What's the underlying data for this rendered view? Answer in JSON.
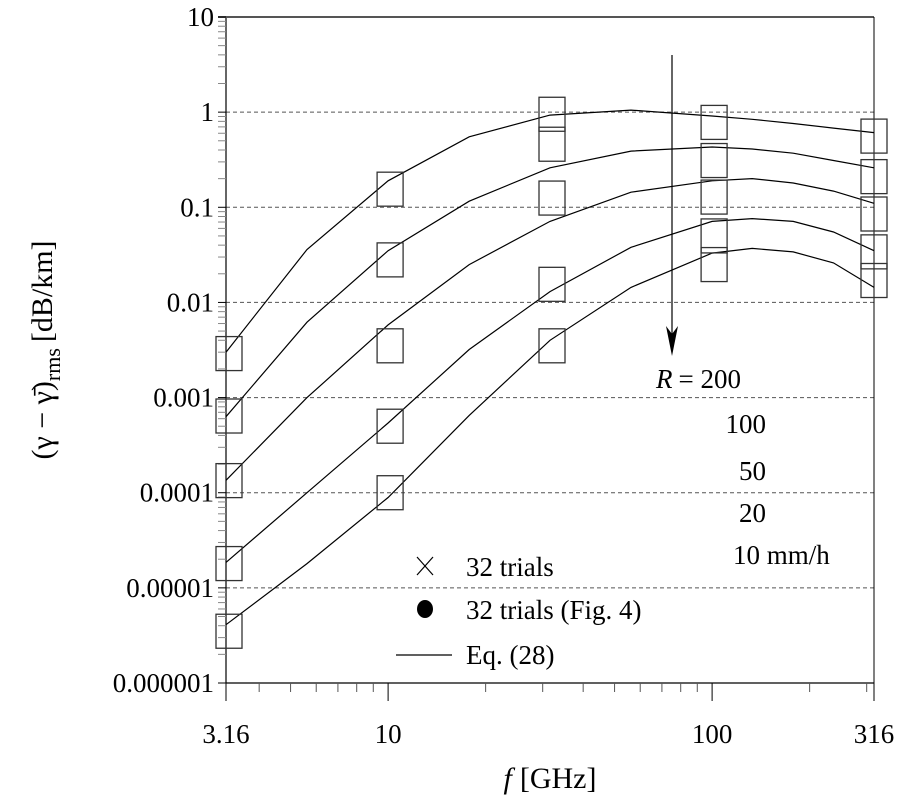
{
  "chart_data": {
    "type": "line",
    "xlabel_italic": "f",
    "xlabel": "[GHz]",
    "ylabel_main": "(γ − γ̄)",
    "ylabel_sub": "rms",
    "ylabel_unit": "[dB/km]",
    "x_scale": "log",
    "y_scale": "log",
    "xlim": [
      3.16,
      316
    ],
    "ylim": [
      1e-06,
      10
    ],
    "x_ticks": [
      {
        "v": 3.16,
        "label": "3.16"
      },
      {
        "v": 10,
        "label": "10"
      },
      {
        "v": 100,
        "label": "100"
      },
      {
        "v": 316,
        "label": "316"
      }
    ],
    "y_ticks": [
      {
        "v": 10,
        "label": "10"
      },
      {
        "v": 1,
        "label": "1"
      },
      {
        "v": 0.1,
        "label": "0.1"
      },
      {
        "v": 0.01,
        "label": "0.01"
      },
      {
        "v": 0.001,
        "label": "0.001"
      },
      {
        "v": 0.0001,
        "label": "0.0001"
      },
      {
        "v": 1e-05,
        "label": "0.00001"
      },
      {
        "v": 1e-06,
        "label": "0.000001"
      }
    ],
    "grid": "horizontal dashed at decades",
    "x": [
      3.16,
      5.62,
      10,
      17.8,
      31.6,
      56.2,
      100,
      133,
      178,
      237,
      316
    ],
    "series": [
      {
        "label": "200",
        "values": [
          0.003,
          0.036,
          0.19,
          0.55,
          0.93,
          1.05,
          0.91,
          0.84,
          0.76,
          0.68,
          0.61
        ]
      },
      {
        "label": "100",
        "values": [
          0.00063,
          0.0062,
          0.035,
          0.116,
          0.26,
          0.39,
          0.43,
          0.41,
          0.37,
          0.31,
          0.26
        ]
      },
      {
        "label": "50",
        "values": [
          0.000135,
          0.001,
          0.0058,
          0.025,
          0.071,
          0.144,
          0.19,
          0.2,
          0.18,
          0.148,
          0.11
        ]
      },
      {
        "label": "20",
        "values": [
          1.85e-05,
          0.0001,
          0.00054,
          0.0032,
          0.013,
          0.038,
          0.071,
          0.076,
          0.071,
          0.055,
          0.035
        ]
      },
      {
        "label": "10 mm/h",
        "values": [
          4.1e-06,
          1.8e-05,
          8.9e-05,
          0.00065,
          0.004,
          0.0144,
          0.033,
          0.037,
          0.034,
          0.026,
          0.0144
        ]
      }
    ],
    "markers": {
      "x": [
        3.16,
        10,
        31.6,
        100,
        316
      ],
      "groups": [
        [
          0.0029,
          0.155,
          0.95,
          0.78,
          0.56
        ],
        [
          0.00064,
          0.028,
          0.46,
          0.31,
          0.21
        ],
        [
          0.000134,
          0.0035,
          0.125,
          0.128,
          0.085
        ],
        [
          1.8e-05,
          0.0005,
          0.0155,
          0.05,
          0.034
        ],
        [
          3.5e-06,
          0.0001,
          0.0035,
          0.025,
          0.017
        ]
      ]
    },
    "annotation": {
      "r_italic": "R",
      "r_prefix": "= 200",
      "values": [
        "100",
        "50",
        "20",
        "10 mm/h"
      ],
      "arrow": "down"
    },
    "legend": {
      "placement": "bottom-center",
      "entries": [
        {
          "symbol": "cross",
          "label": "32 trials"
        },
        {
          "symbol": "dot",
          "label": "32 trials (Fig. 4)"
        },
        {
          "symbol": "line",
          "label": "Eq. (28)"
        }
      ]
    },
    "colors": {
      "line": "#000000",
      "grid": "#555555",
      "marker": "#333333"
    }
  }
}
